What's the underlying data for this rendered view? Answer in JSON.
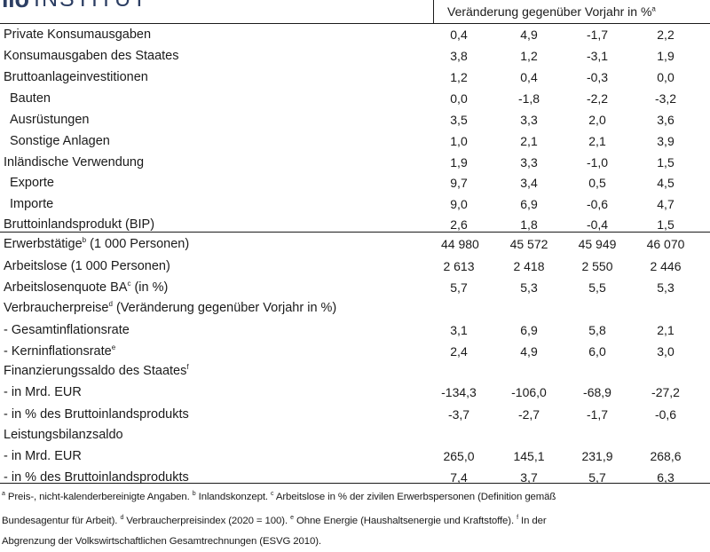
{
  "logo": {
    "mark": "ifo",
    "word": "INSTITUT"
  },
  "header": {
    "text": "Veränderung gegenüber Vorjahr in %",
    "sup": "a"
  },
  "rows": [
    {
      "label": "Private Konsumausgaben",
      "sup": "",
      "after": "",
      "values": [
        "0,4",
        "4,9",
        "-1,7",
        "2,2"
      ]
    },
    {
      "label": "Konsumausgaben des Staates",
      "sup": "",
      "after": "",
      "values": [
        "3,8",
        "1,2",
        "-3,1",
        "1,9"
      ]
    },
    {
      "label": "Bruttoanlageinvestitionen",
      "sup": "",
      "after": "",
      "values": [
        "1,2",
        "0,4",
        "-0,3",
        "0,0"
      ]
    },
    {
      "label": "Bauten",
      "sup": "",
      "after": "",
      "values": [
        "0,0",
        "-1,8",
        "-2,2",
        "-3,2"
      ]
    },
    {
      "label": "Ausrüstungen",
      "sup": "",
      "after": "",
      "values": [
        "3,5",
        "3,3",
        "2,0",
        "3,6"
      ]
    },
    {
      "label": "Sonstige Anlagen",
      "sup": "",
      "after": "",
      "values": [
        "1,0",
        "2,1",
        "2,1",
        "3,9"
      ]
    },
    {
      "label": "Inländische Verwendung",
      "sup": "",
      "after": "",
      "values": [
        "1,9",
        "3,3",
        "-1,0",
        "1,5"
      ]
    },
    {
      "label": "Exporte",
      "sup": "",
      "after": "",
      "values": [
        "9,7",
        "3,4",
        "0,5",
        "4,5"
      ]
    },
    {
      "label": "Importe",
      "sup": "",
      "after": "",
      "values": [
        "9,0",
        "6,9",
        "-0,6",
        "4,7"
      ]
    },
    {
      "label": "Bruttoinlandsprodukt (BIP)",
      "sup": "",
      "after": "",
      "values": [
        "2,6",
        "1,8",
        "-0,4",
        "1,5"
      ]
    },
    {
      "label": "Erwerbstätige",
      "sup": "b",
      "after": " (1 000 Personen)",
      "values": [
        "44 980",
        "45 572",
        "45 949",
        "46 070"
      ]
    },
    {
      "label": "Arbeitslose (1 000 Personen)",
      "sup": "",
      "after": "",
      "values": [
        "2 613",
        "2 418",
        "2 550",
        "2 446"
      ]
    },
    {
      "label": "Arbeitslosenquote BA",
      "sup": "c",
      "after": " (in %)",
      "values": [
        "5,7",
        "5,3",
        "5,5",
        "5,3"
      ]
    },
    {
      "label": "Verbraucherpreise",
      "sup": "d",
      "after": " (Veränderung gegenüber Vorjahr in %)",
      "values": [
        "",
        "",
        "",
        ""
      ]
    },
    {
      "label": " - Gesamtinflationsrate",
      "sup": "",
      "after": "",
      "values": [
        "3,1",
        "6,9",
        "5,8",
        "2,1"
      ]
    },
    {
      "label": " - Kerninflationsrate",
      "sup": "e",
      "after": "",
      "values": [
        "2,4",
        "4,9",
        "6,0",
        "3,0"
      ]
    },
    {
      "label": "Finanzierungssaldo des Staates",
      "sup": "f",
      "after": "",
      "values": [
        "",
        "",
        "",
        ""
      ]
    },
    {
      "label": " - in Mrd. EUR",
      "sup": "",
      "after": "",
      "values": [
        "-134,3",
        "-106,0",
        "-68,9",
        "-27,2"
      ]
    },
    {
      "label": " - in % des Bruttoinlandsprodukts",
      "sup": "",
      "after": "",
      "values": [
        "-3,7",
        "-2,7",
        "-1,7",
        "-0,6"
      ]
    },
    {
      "label": "Leistungsbilanzsaldo",
      "sup": "",
      "after": "",
      "values": [
        "",
        "",
        "",
        ""
      ]
    },
    {
      "label": " - in Mrd. EUR",
      "sup": "",
      "after": "",
      "values": [
        "265,0",
        "145,1",
        "231,9",
        "268,6"
      ]
    },
    {
      "label": " - in % des Bruttoinlandsprodukts",
      "sup": "",
      "after": "",
      "values": [
        "7,4",
        "3,7",
        "5,7",
        "6,3"
      ]
    }
  ],
  "footnotes": {
    "a_sup": "a",
    "a": " Preis-, nicht-kalenderbereinigte Angaben. ",
    "b_sup": "b",
    "b": " Inlandskonzept. ",
    "c_sup": "c",
    "c": " Arbeitslose in % der zivilen Erwerbspersonen (Definition gemäß",
    "line2": "Bundesagentur für Arbeit). ",
    "d_sup": "d",
    "d": " Verbraucherpreisindex (2020 = 100). ",
    "e_sup": "e",
    "e": " Ohne Energie (Haushaltsenergie und Kraftstoffe). ",
    "f_sup": "f",
    "f": " In der",
    "line3": "Abgrenzung der Volkswirtschaftlichen Gesamtrechnungen (ESVG 2010)."
  }
}
